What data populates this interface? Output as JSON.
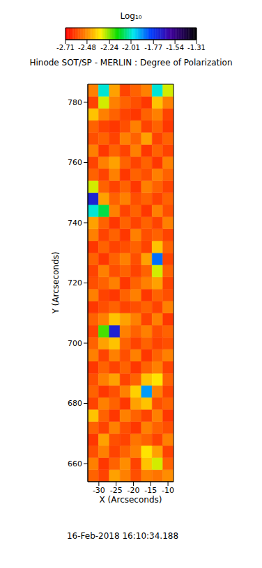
{
  "chart_data": {
    "type": "heatmap",
    "title": "Hinode SOT/SP - MERLIN : Degree of Polarization",
    "subtitle": "16-Feb-2018 16:10:34.188",
    "x_label": "X (Arcseconds)",
    "y_label": "Y (Arcseconds)",
    "xlim": [
      -33.2,
      -8.4
    ],
    "xticks": [
      -30,
      -25,
      -20,
      -15,
      -10
    ],
    "ylim": [
      654,
      786
    ],
    "yticks": [
      660,
      680,
      700,
      720,
      740,
      760,
      780
    ],
    "cells": {
      "x_edges": [
        -33.2,
        -30.1,
        -27.0,
        -23.9,
        -20.8,
        -17.7,
        -14.6,
        -11.5,
        -8.4
      ],
      "y_edges": [
        654,
        658,
        662,
        666,
        670,
        674,
        678,
        682,
        686,
        690,
        694,
        698,
        702,
        706,
        710,
        714,
        718,
        722,
        726,
        730,
        734,
        738,
        742,
        746,
        750,
        754,
        758,
        762,
        766,
        770,
        774,
        778,
        782,
        786
      ],
      "values": [
        [
          -2.55,
          -2.6,
          -2.45,
          -2.5,
          -2.58,
          -2.5,
          -2.52,
          -2.48
        ],
        [
          -2.5,
          -2.62,
          -2.55,
          -2.48,
          -2.6,
          -2.4,
          -2.3,
          -2.55
        ],
        [
          -2.58,
          -2.5,
          -2.6,
          -2.55,
          -2.5,
          -2.35,
          -2.45,
          -2.6
        ],
        [
          -2.62,
          -2.45,
          -2.58,
          -2.6,
          -2.52,
          -2.55,
          -2.6,
          -2.5
        ],
        [
          -2.55,
          -2.6,
          -2.5,
          -2.58,
          -2.62,
          -2.5,
          -2.55,
          -2.58
        ],
        [
          -2.4,
          -2.55,
          -2.62,
          -2.5,
          -2.55,
          -2.6,
          -2.5,
          -2.62
        ],
        [
          -2.6,
          -2.5,
          -2.55,
          -2.62,
          -2.45,
          -2.4,
          -2.58,
          -2.55
        ],
        [
          -2.55,
          -2.62,
          -2.58,
          -2.5,
          -2.38,
          -1.9,
          -2.5,
          -2.6
        ],
        [
          -2.58,
          -2.5,
          -2.45,
          -2.6,
          -2.55,
          -2.4,
          -2.35,
          -2.55
        ],
        [
          -2.62,
          -2.55,
          -2.6,
          -2.55,
          -2.62,
          -2.55,
          -2.5,
          -2.6
        ],
        [
          -2.5,
          -2.6,
          -2.5,
          -2.58,
          -2.5,
          -2.62,
          -2.55,
          -2.5
        ],
        [
          -2.55,
          -2.45,
          -2.4,
          -2.55,
          -2.6,
          -2.55,
          -2.6,
          -2.58
        ],
        [
          -2.6,
          -2.2,
          -1.7,
          -2.5,
          -2.55,
          -2.5,
          -2.58,
          -2.55
        ],
        [
          -2.55,
          -2.5,
          -2.4,
          -2.45,
          -2.5,
          -2.6,
          -2.5,
          -2.62
        ],
        [
          -2.62,
          -2.58,
          -2.55,
          -2.6,
          -2.58,
          -2.55,
          -2.6,
          -2.5
        ],
        [
          -2.5,
          -2.6,
          -2.62,
          -2.55,
          -2.5,
          -2.62,
          -2.55,
          -2.58
        ],
        [
          -2.58,
          -2.55,
          -2.5,
          -2.62,
          -2.55,
          -2.5,
          -2.45,
          -2.6
        ],
        [
          -2.6,
          -2.5,
          -2.58,
          -2.55,
          -2.6,
          -2.55,
          -2.3,
          -2.55
        ],
        [
          -2.55,
          -2.62,
          -2.55,
          -2.5,
          -2.58,
          -2.45,
          -1.85,
          -2.6
        ],
        [
          -2.62,
          -2.55,
          -2.6,
          -2.58,
          -2.55,
          -2.6,
          -2.4,
          -2.55
        ],
        [
          -2.5,
          -2.6,
          -2.55,
          -2.62,
          -2.5,
          -2.58,
          -2.55,
          -2.6
        ],
        [
          -2.45,
          -2.55,
          -2.62,
          -2.55,
          -2.6,
          -2.55,
          -2.6,
          -2.5
        ],
        [
          -2.0,
          -2.1,
          -2.5,
          -2.6,
          -2.55,
          -2.62,
          -2.5,
          -2.58
        ],
        [
          -1.7,
          -2.45,
          -2.55,
          -2.5,
          -2.58,
          -2.55,
          -2.6,
          -2.55
        ],
        [
          -2.3,
          -2.55,
          -2.6,
          -2.55,
          -2.62,
          -2.5,
          -2.55,
          -2.6
        ],
        [
          -2.55,
          -2.6,
          -2.5,
          -2.62,
          -2.55,
          -2.58,
          -2.5,
          -2.55
        ],
        [
          -2.6,
          -2.5,
          -2.45,
          -2.55,
          -2.6,
          -2.55,
          -2.62,
          -2.5
        ],
        [
          -2.5,
          -2.62,
          -2.55,
          -2.6,
          -2.5,
          -2.62,
          -2.55,
          -2.6
        ],
        [
          -2.58,
          -2.55,
          -2.6,
          -2.5,
          -2.55,
          -2.45,
          -2.6,
          -2.55
        ],
        [
          -2.55,
          -2.6,
          -2.62,
          -2.58,
          -2.5,
          -2.6,
          -2.55,
          -2.62
        ],
        [
          -2.4,
          -2.5,
          -2.55,
          -2.6,
          -2.62,
          -2.55,
          -2.5,
          -2.6
        ],
        [
          -2.6,
          -2.3,
          -2.5,
          -2.55,
          -2.58,
          -2.62,
          -2.4,
          -2.5
        ],
        [
          -2.5,
          -2.0,
          -2.45,
          -2.6,
          -2.55,
          -2.5,
          -2.0,
          -2.3
        ]
      ]
    },
    "colorbar": {
      "label": "Log₁₀",
      "range": [
        -2.71,
        -1.31
      ],
      "ticks": [
        -2.71,
        -2.48,
        -2.24,
        -2.01,
        -1.77,
        -1.54,
        -1.31
      ]
    }
  }
}
